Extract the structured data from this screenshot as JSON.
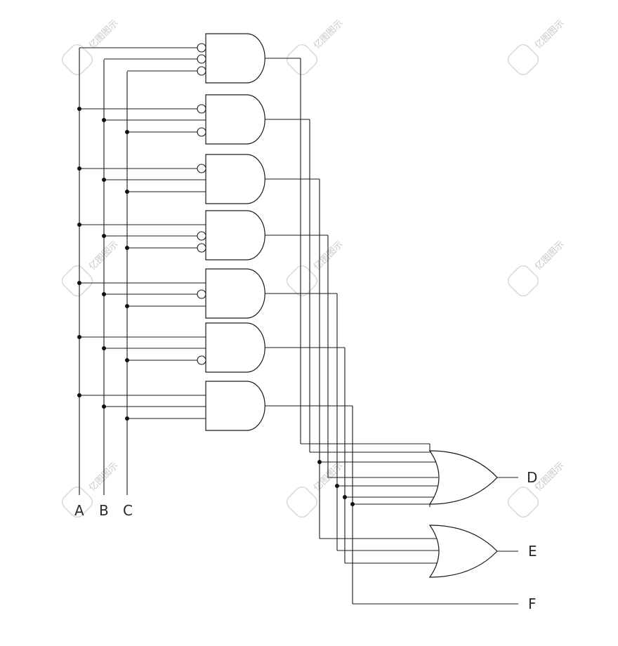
{
  "inputs": [
    "A",
    "B",
    "C"
  ],
  "outputs": [
    "D",
    "E",
    "F"
  ],
  "watermark": "亿图图示",
  "gates": {
    "and": [
      {
        "inverted": [
          "A",
          "B",
          "C"
        ]
      },
      {
        "inverted": [
          "A",
          "C"
        ]
      },
      {
        "inverted": [
          "A"
        ]
      },
      {
        "inverted": [
          "B",
          "C"
        ]
      },
      {
        "inverted": [
          "B"
        ]
      },
      {
        "inverted": [
          "C"
        ]
      },
      {
        "inverted": []
      }
    ],
    "or_count": 2
  }
}
